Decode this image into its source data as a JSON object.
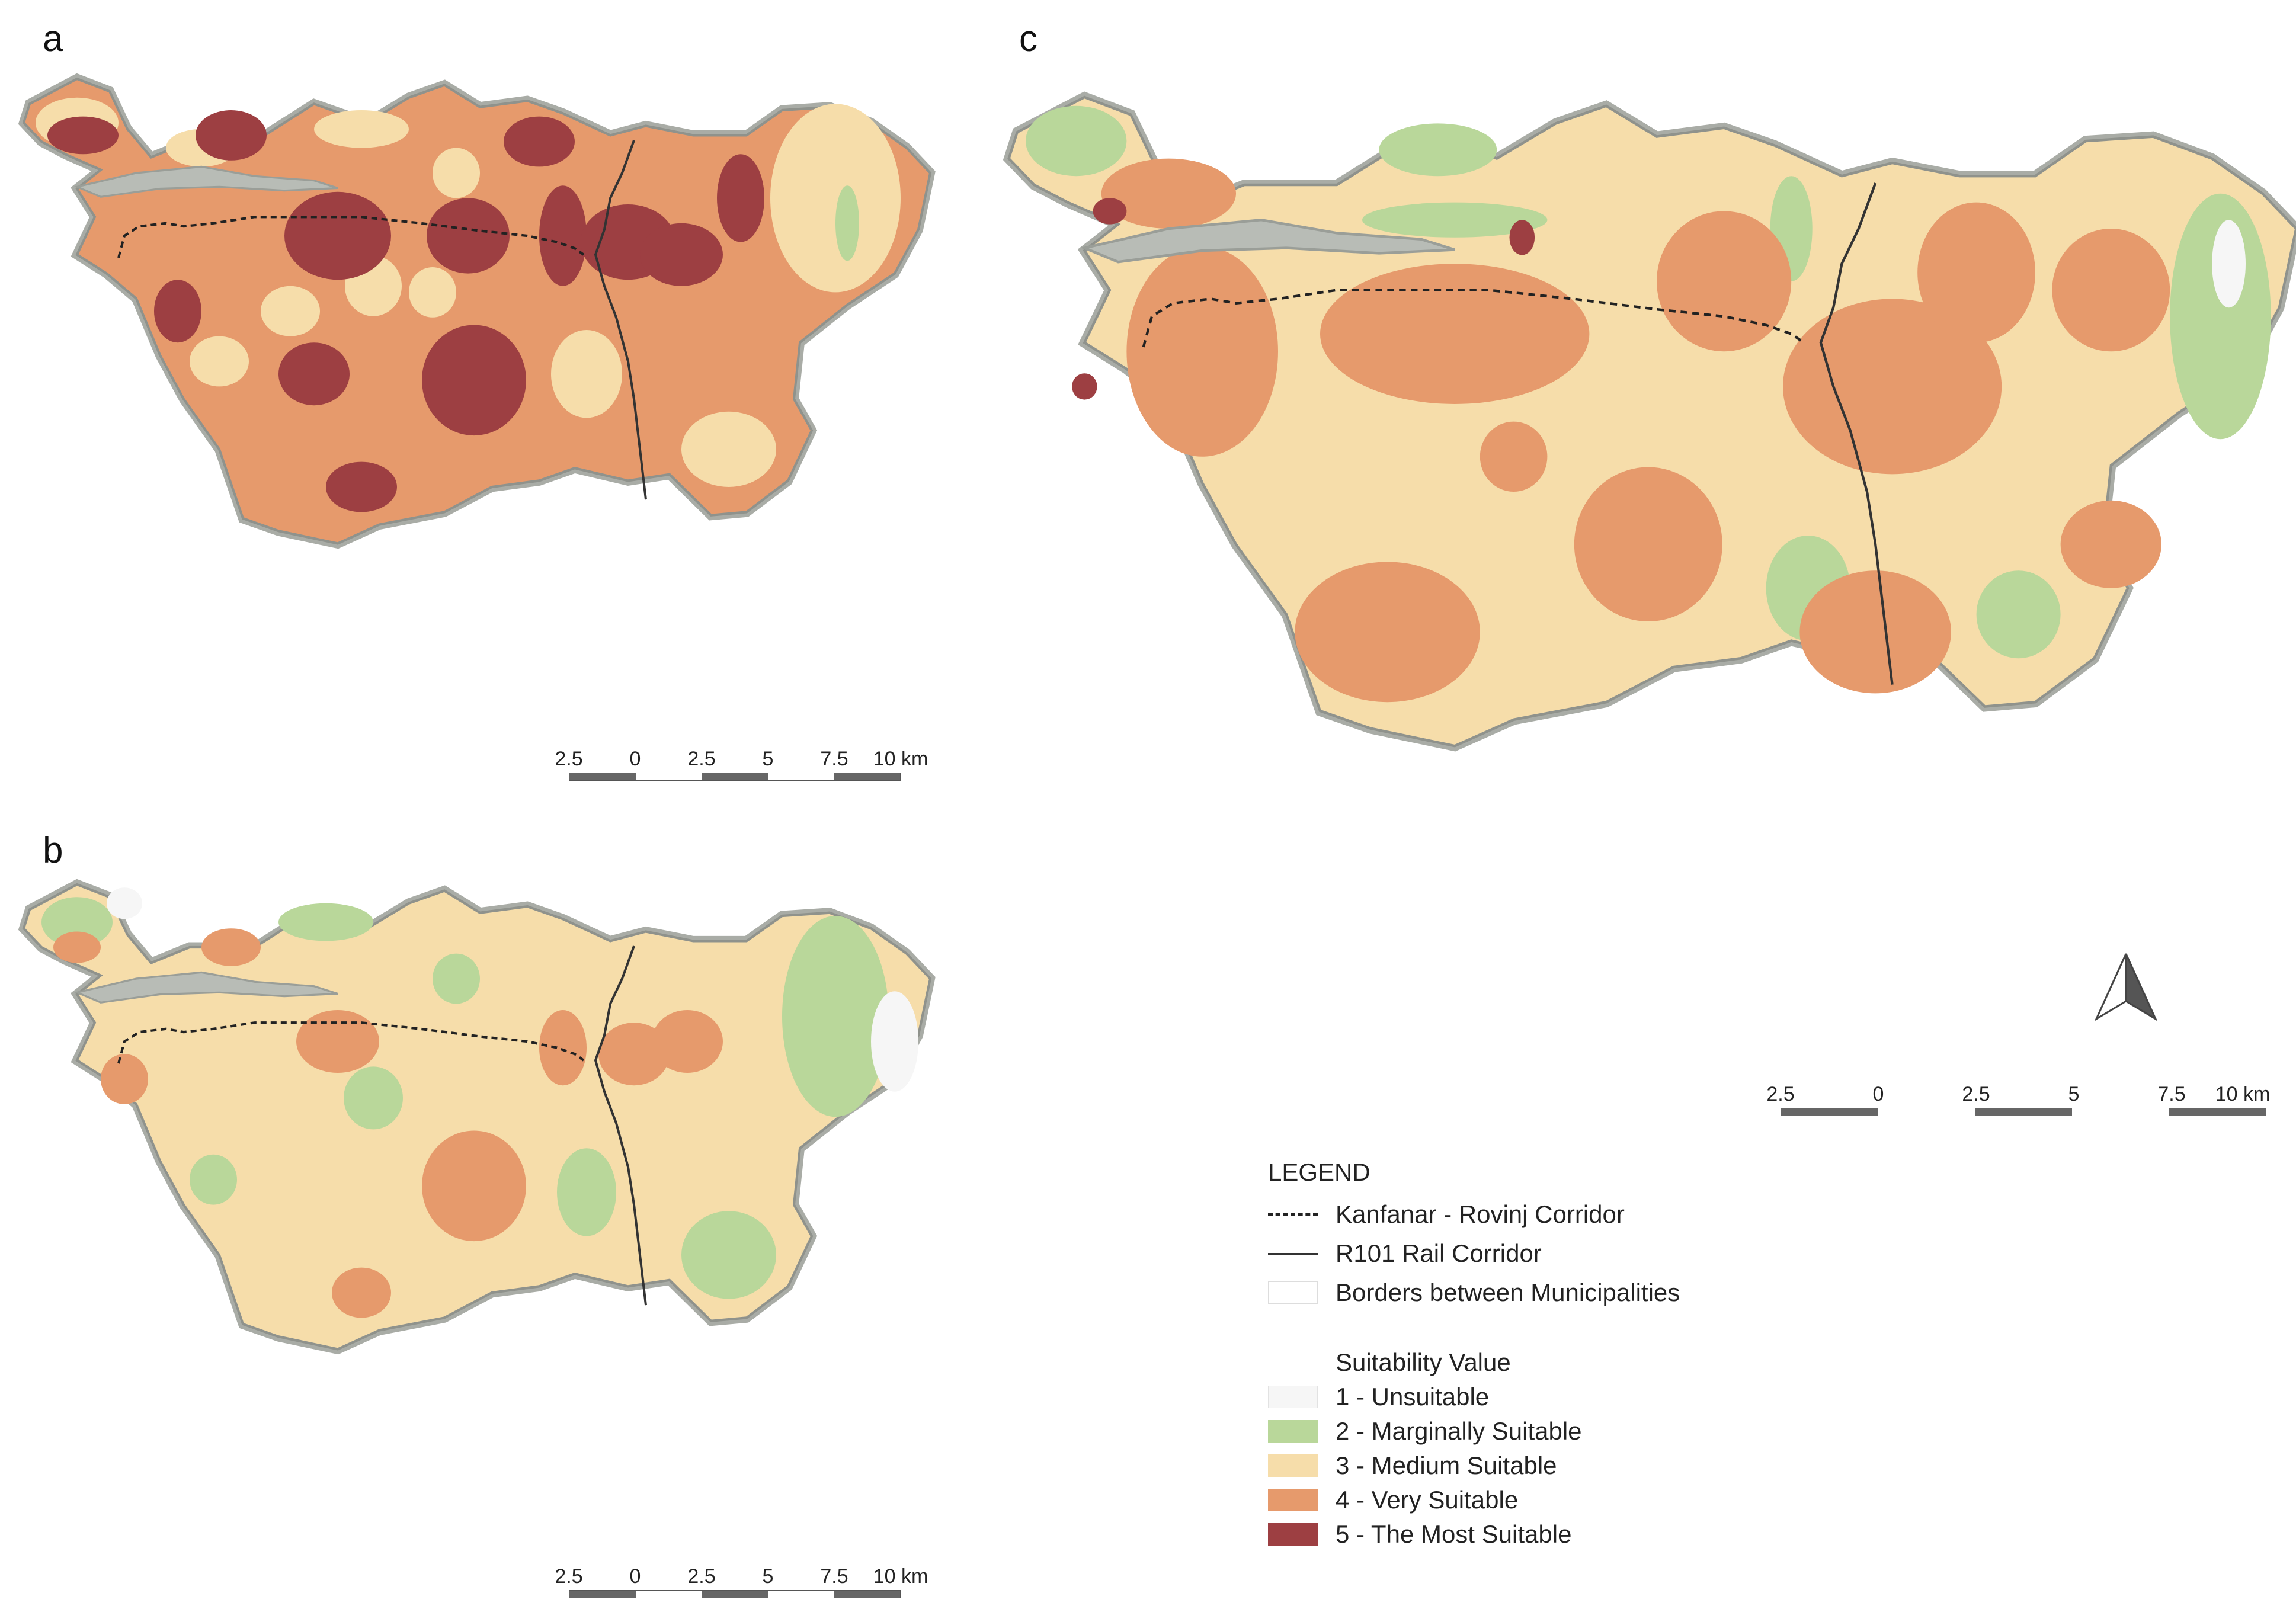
{
  "panels": [
    {
      "label": "a"
    },
    {
      "label": "b"
    },
    {
      "label": "c"
    }
  ],
  "scalebar": {
    "labels": [
      "2.5",
      "0",
      "2.5",
      "5",
      "7.5",
      "10 km"
    ]
  },
  "legend": {
    "title": "LEGEND",
    "lines": [
      {
        "label": "Kanfanar - Rovinj Corridor",
        "style": "dashed"
      },
      {
        "label": "R101 Rail Corridor",
        "style": "solid"
      },
      {
        "label": "Borders between  Municipalities",
        "style": "border"
      }
    ],
    "suitability_title": "Suitability Value",
    "classes": [
      {
        "label": "1 - Unsuitable",
        "color": "#f6f6f6"
      },
      {
        "label": "2 - Marginally Suitable",
        "color": "#b9d79a"
      },
      {
        "label": "3 - Medium Suitable",
        "color": "#f6ddaa"
      },
      {
        "label": "4 - Very Suitable",
        "color": "#e69a6c"
      },
      {
        "label": "5 - The Most Suitable",
        "color": "#9d3f42"
      }
    ]
  },
  "colors": {
    "water_edge": "#a9aca6",
    "land_edge": "#8f928c"
  },
  "icons": [
    "north-arrow-icon"
  ]
}
